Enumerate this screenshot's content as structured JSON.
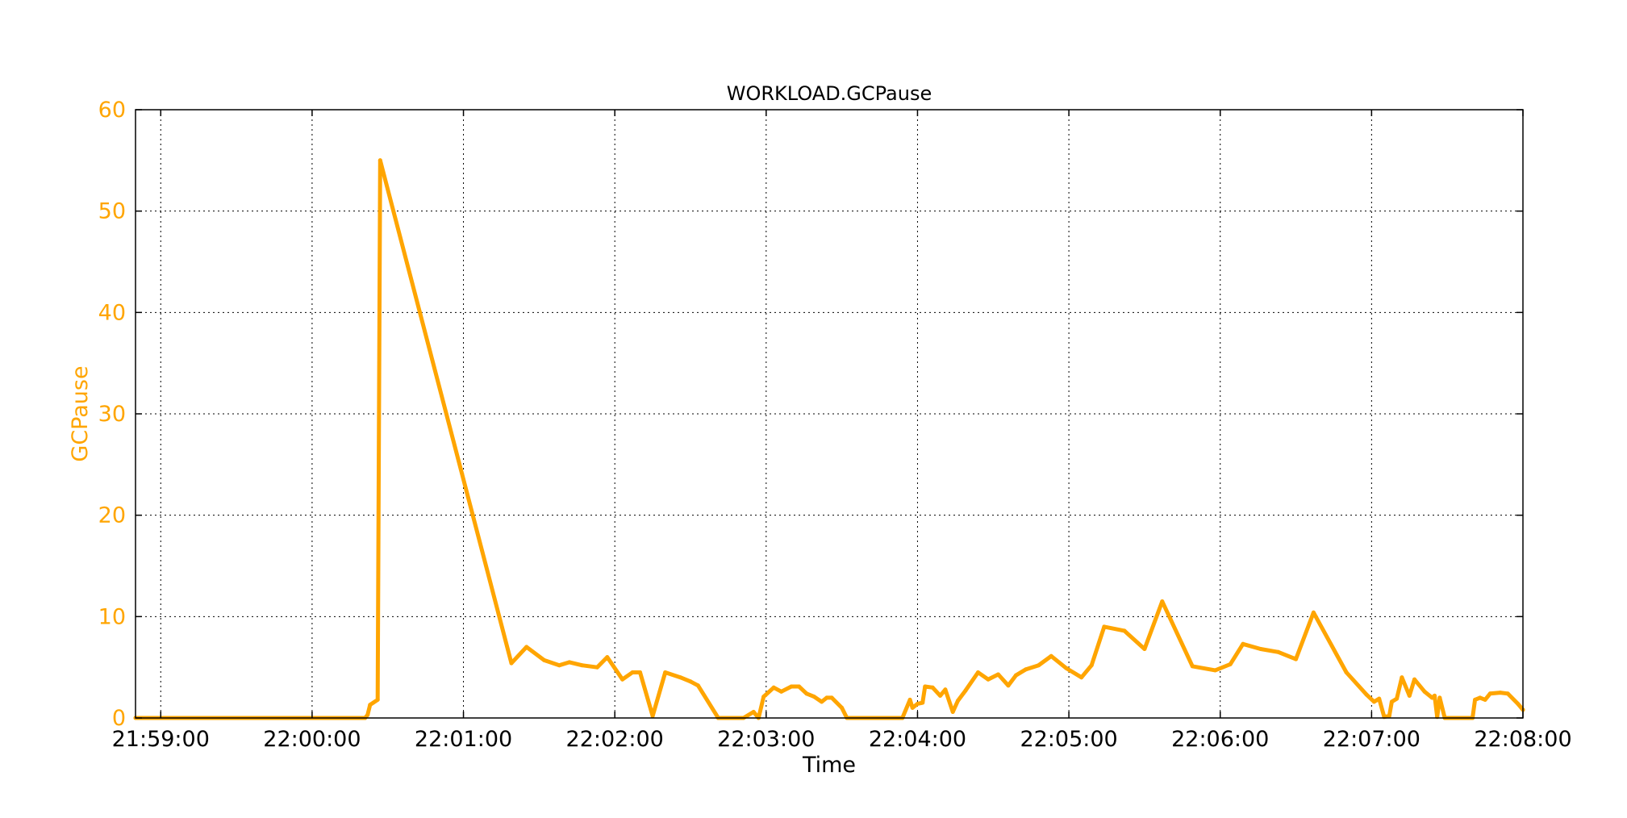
{
  "chart_data": {
    "type": "line",
    "title": "WORKLOAD.GCPause",
    "xlabel": "Time",
    "ylabel": "GCPause",
    "x_is_time": true,
    "xlim": [
      "21:58:50",
      "22:08:00"
    ],
    "ylim": [
      0,
      60
    ],
    "x_ticks": [
      "21:59:00",
      "22:00:00",
      "22:01:00",
      "22:02:00",
      "22:03:00",
      "22:04:00",
      "22:05:00",
      "22:06:00",
      "22:07:00",
      "22:08:00"
    ],
    "y_ticks": [
      0,
      10,
      20,
      30,
      40,
      50,
      60
    ],
    "grid": true,
    "legend": "none",
    "colors": {
      "series": "#FFA500",
      "y_axis": "#FFA500",
      "x_axis": "#000000",
      "grid": "#000000"
    },
    "series": [
      {
        "color": "#FFA500",
        "points": [
          [
            "21:58:50",
            0.0
          ],
          [
            "21:59:20",
            0.0
          ],
          [
            "22:00:00",
            0.0
          ],
          [
            "22:00:21",
            0.0
          ],
          [
            "22:00:22",
            0.3
          ],
          [
            "22:00:23",
            1.3
          ],
          [
            "22:00:26",
            1.8
          ],
          [
            "22:00:27",
            55.0
          ],
          [
            "22:01:19",
            5.4
          ],
          [
            "22:01:25",
            7.0
          ],
          [
            "22:01:32",
            5.7
          ],
          [
            "22:01:38",
            5.2
          ],
          [
            "22:01:42",
            5.5
          ],
          [
            "22:01:47",
            5.2
          ],
          [
            "22:01:53",
            5.0
          ],
          [
            "22:01:57",
            6.0
          ],
          [
            "22:02:03",
            3.8
          ],
          [
            "22:02:07",
            4.5
          ],
          [
            "22:02:10",
            4.5
          ],
          [
            "22:02:15",
            0.2
          ],
          [
            "22:02:20",
            4.5
          ],
          [
            "22:02:26",
            4.0
          ],
          [
            "22:02:30",
            3.6
          ],
          [
            "22:02:33",
            3.2
          ],
          [
            "22:02:41",
            0.0
          ],
          [
            "22:02:51",
            0.0
          ],
          [
            "22:02:55",
            0.6
          ],
          [
            "22:02:57",
            0.0
          ],
          [
            "22:02:59",
            2.1
          ],
          [
            "22:03:03",
            3.0
          ],
          [
            "22:03:06",
            2.6
          ],
          [
            "22:03:10",
            3.1
          ],
          [
            "22:03:13",
            3.1
          ],
          [
            "22:03:16",
            2.4
          ],
          [
            "22:03:19",
            2.1
          ],
          [
            "22:03:22",
            1.6
          ],
          [
            "22:03:24",
            2.0
          ],
          [
            "22:03:26",
            2.0
          ],
          [
            "22:03:30",
            1.0
          ],
          [
            "22:03:32",
            0.0
          ],
          [
            "22:03:45",
            0.0
          ],
          [
            "22:03:54",
            0.0
          ],
          [
            "22:03:57",
            1.8
          ],
          [
            "22:03:58",
            1.0
          ],
          [
            "22:04:00",
            1.4
          ],
          [
            "22:04:02",
            1.5
          ],
          [
            "22:04:03",
            3.1
          ],
          [
            "22:04:06",
            3.0
          ],
          [
            "22:04:09",
            2.2
          ],
          [
            "22:04:11",
            2.8
          ],
          [
            "22:04:14",
            0.6
          ],
          [
            "22:04:16",
            1.7
          ],
          [
            "22:04:19",
            2.7
          ],
          [
            "22:04:24",
            4.5
          ],
          [
            "22:04:28",
            3.8
          ],
          [
            "22:04:32",
            4.3
          ],
          [
            "22:04:36",
            3.2
          ],
          [
            "22:04:39",
            4.2
          ],
          [
            "22:04:43",
            4.8
          ],
          [
            "22:04:48",
            5.2
          ],
          [
            "22:04:53",
            6.1
          ],
          [
            "22:04:59",
            4.9
          ],
          [
            "22:05:05",
            4.0
          ],
          [
            "22:05:09",
            5.2
          ],
          [
            "22:05:14",
            9.0
          ],
          [
            "22:05:22",
            8.6
          ],
          [
            "22:05:30",
            6.8
          ],
          [
            "22:05:37",
            11.5
          ],
          [
            "22:05:49",
            5.1
          ],
          [
            "22:05:58",
            4.7
          ],
          [
            "22:06:04",
            5.3
          ],
          [
            "22:06:09",
            7.3
          ],
          [
            "22:06:16",
            6.8
          ],
          [
            "22:06:23",
            6.5
          ],
          [
            "22:06:30",
            5.8
          ],
          [
            "22:06:37",
            10.4
          ],
          [
            "22:06:50",
            4.5
          ],
          [
            "22:06:58",
            2.3
          ],
          [
            "22:07:01",
            1.6
          ],
          [
            "22:07:03",
            1.9
          ],
          [
            "22:07:05",
            0.1
          ],
          [
            "22:07:07",
            0.2
          ],
          [
            "22:07:08",
            1.6
          ],
          [
            "22:07:10",
            1.9
          ],
          [
            "22:07:12",
            4.0
          ],
          [
            "22:07:15",
            2.2
          ],
          [
            "22:07:17",
            3.8
          ],
          [
            "22:07:21",
            2.6
          ],
          [
            "22:07:24",
            2.0
          ],
          [
            "22:07:25",
            2.2
          ],
          [
            "22:07:26",
            0.1
          ],
          [
            "22:07:27",
            2.0
          ],
          [
            "22:07:29",
            0.0
          ],
          [
            "22:07:35",
            0.0
          ],
          [
            "22:07:40",
            0.0
          ],
          [
            "22:07:41",
            1.8
          ],
          [
            "22:07:43",
            2.0
          ],
          [
            "22:07:45",
            1.8
          ],
          [
            "22:07:47",
            2.4
          ],
          [
            "22:07:51",
            2.5
          ],
          [
            "22:07:54",
            2.4
          ],
          [
            "22:07:58",
            1.4
          ],
          [
            "22:08:00",
            0.8
          ]
        ]
      }
    ]
  }
}
